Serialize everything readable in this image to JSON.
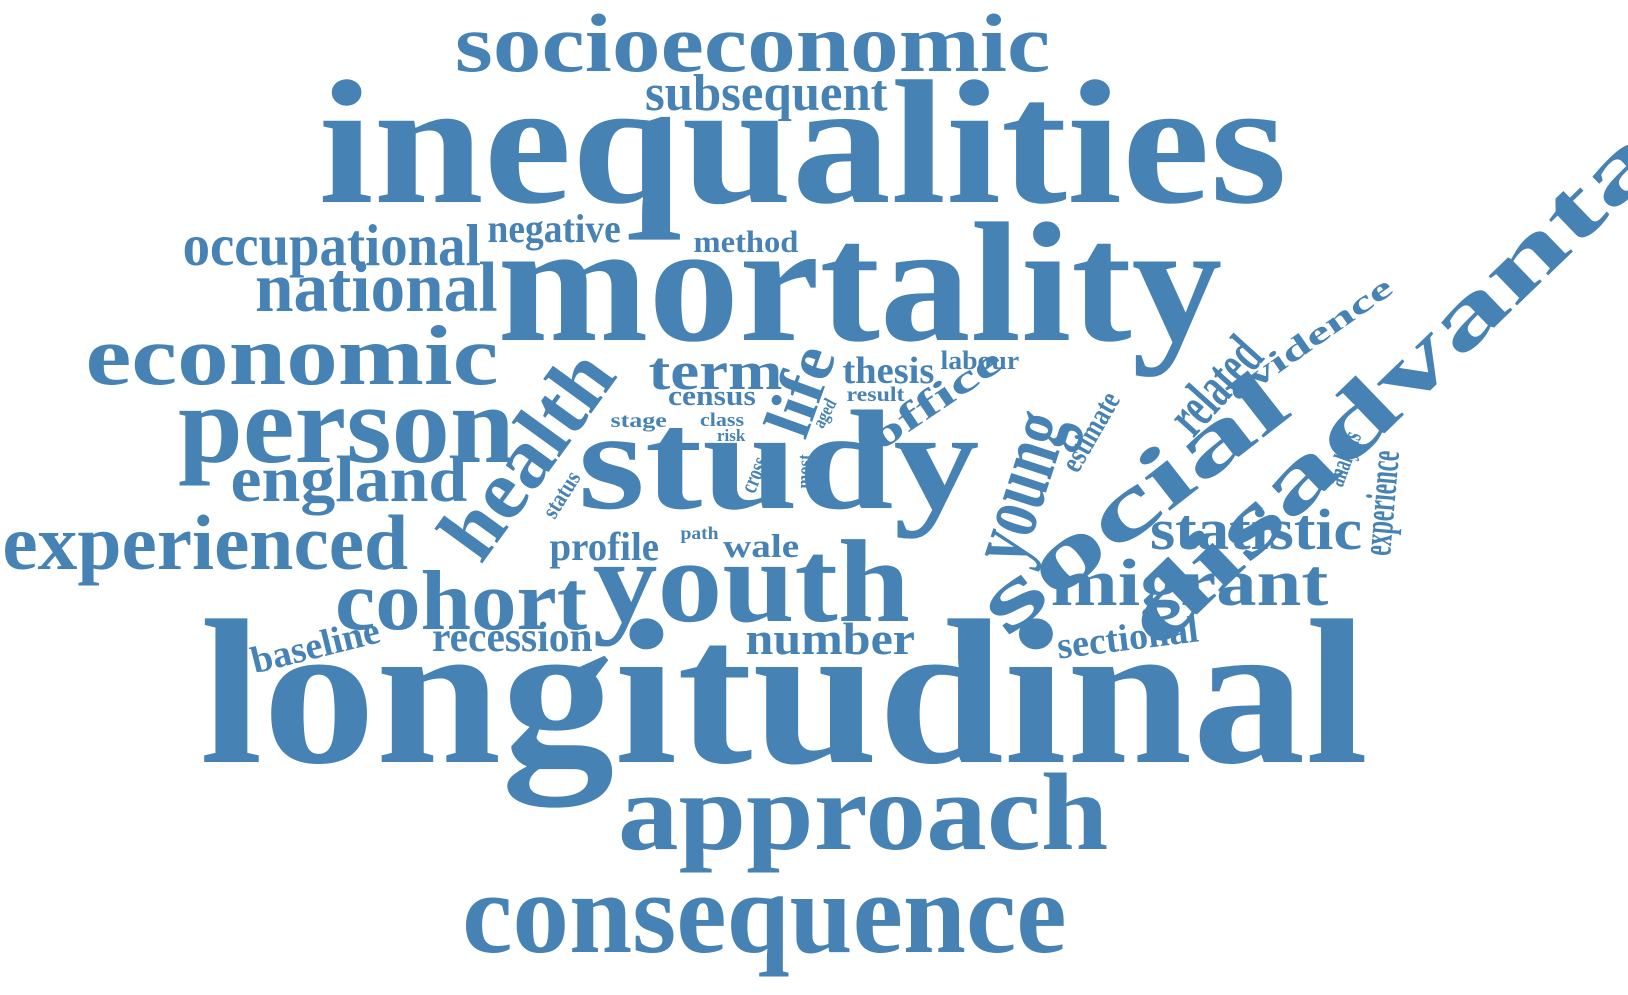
{
  "word_color": "#4682b4",
  "background_color": "#ffffff",
  "words": [
    {
      "text": "longitudinal"
    },
    {
      "text": "inequalities"
    },
    {
      "text": "mortality"
    },
    {
      "text": "study"
    },
    {
      "text": "youth"
    },
    {
      "text": "approach"
    },
    {
      "text": "socioeconomic"
    },
    {
      "text": "consequence"
    },
    {
      "text": "person"
    },
    {
      "text": "economic"
    },
    {
      "text": "health"
    },
    {
      "text": "young"
    },
    {
      "text": "social"
    },
    {
      "text": "disadvantage"
    },
    {
      "text": "cohort"
    },
    {
      "text": "experienced"
    },
    {
      "text": "national"
    },
    {
      "text": "occupational"
    },
    {
      "text": "england"
    },
    {
      "text": "migrant"
    },
    {
      "text": "statistic"
    },
    {
      "text": "subsequent"
    },
    {
      "text": "life"
    },
    {
      "text": "term"
    },
    {
      "text": "related"
    },
    {
      "text": "number"
    },
    {
      "text": "recession"
    },
    {
      "text": "negative"
    },
    {
      "text": "profile"
    },
    {
      "text": "baseline"
    },
    {
      "text": "sectional"
    },
    {
      "text": "experience"
    },
    {
      "text": "office"
    },
    {
      "text": "evidence"
    },
    {
      "text": "thesis"
    },
    {
      "text": "method"
    },
    {
      "text": "wale"
    },
    {
      "text": "estimate"
    },
    {
      "text": "census"
    },
    {
      "text": "analysis"
    },
    {
      "text": "labour"
    },
    {
      "text": "result"
    },
    {
      "text": "stage"
    },
    {
      "text": "class"
    },
    {
      "text": "risk"
    },
    {
      "text": "aged"
    },
    {
      "text": "status"
    },
    {
      "text": "cross"
    },
    {
      "text": "most"
    },
    {
      "text": "path"
    }
  ]
}
